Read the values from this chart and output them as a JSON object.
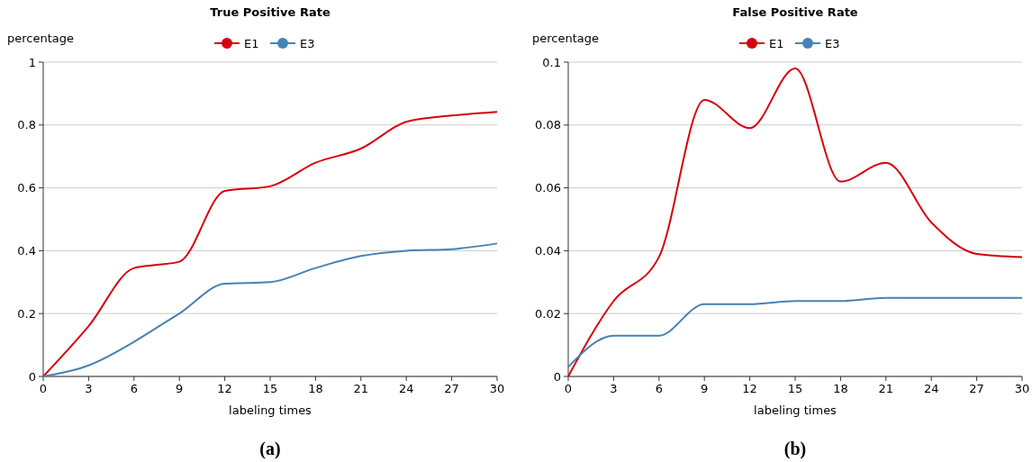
{
  "chart_data": [
    {
      "type": "line",
      "title": "True Positive Rate",
      "ylabel": "percentage",
      "xlabel": "labeling times",
      "x": [
        0,
        3,
        6,
        7.5,
        9,
        12,
        15,
        18,
        21,
        24,
        27,
        30
      ],
      "xlim": [
        0,
        30
      ],
      "xticks": [
        0,
        3,
        6,
        9,
        12,
        15,
        18,
        21,
        24,
        27,
        30
      ],
      "ylim": [
        0,
        1
      ],
      "yticks": [
        0,
        0.2,
        0.4,
        0.6,
        0.8,
        1
      ],
      "grid": "y",
      "legend": "top",
      "annotations": [
        "(a)"
      ],
      "series": [
        {
          "name": "E1",
          "color": "#d7000f",
          "values": [
            0,
            0.16,
            0.345,
            0.355,
            0.365,
            0.59,
            0.605,
            0.68,
            0.725,
            0.81,
            0.83,
            0.842
          ]
        },
        {
          "name": "E3",
          "color": "#4682b4",
          "values": [
            0,
            0.035,
            0.11,
            0.155,
            0.2,
            0.295,
            0.3,
            0.345,
            0.383,
            0.4,
            0.405,
            0.423
          ]
        }
      ]
    },
    {
      "type": "line",
      "title": "False Positive Rate",
      "ylabel": "percentage",
      "xlabel": "labeling times",
      "x": [
        0,
        3,
        6,
        9,
        12,
        15,
        18,
        21,
        24,
        27,
        30
      ],
      "xlim": [
        0,
        30
      ],
      "xticks": [
        0,
        3,
        6,
        9,
        12,
        15,
        18,
        21,
        24,
        27,
        30
      ],
      "ylim": [
        0,
        0.1
      ],
      "yticks": [
        0,
        0.02,
        0.04,
        0.06,
        0.08,
        0.1
      ],
      "grid": "y",
      "legend": "top",
      "annotations": [
        "(b)"
      ],
      "series": [
        {
          "name": "E1",
          "color": "#d7000f",
          "values": [
            0,
            0.024,
            0.038,
            0.088,
            0.079,
            0.098,
            0.062,
            0.068,
            0.049,
            0.039,
            0.038
          ]
        },
        {
          "name": "E3",
          "color": "#4682b4",
          "values": [
            0.003,
            0.013,
            0.013,
            0.023,
            0.023,
            0.024,
            0.024,
            0.025,
            0.025,
            0.025,
            0.025
          ]
        }
      ]
    }
  ]
}
